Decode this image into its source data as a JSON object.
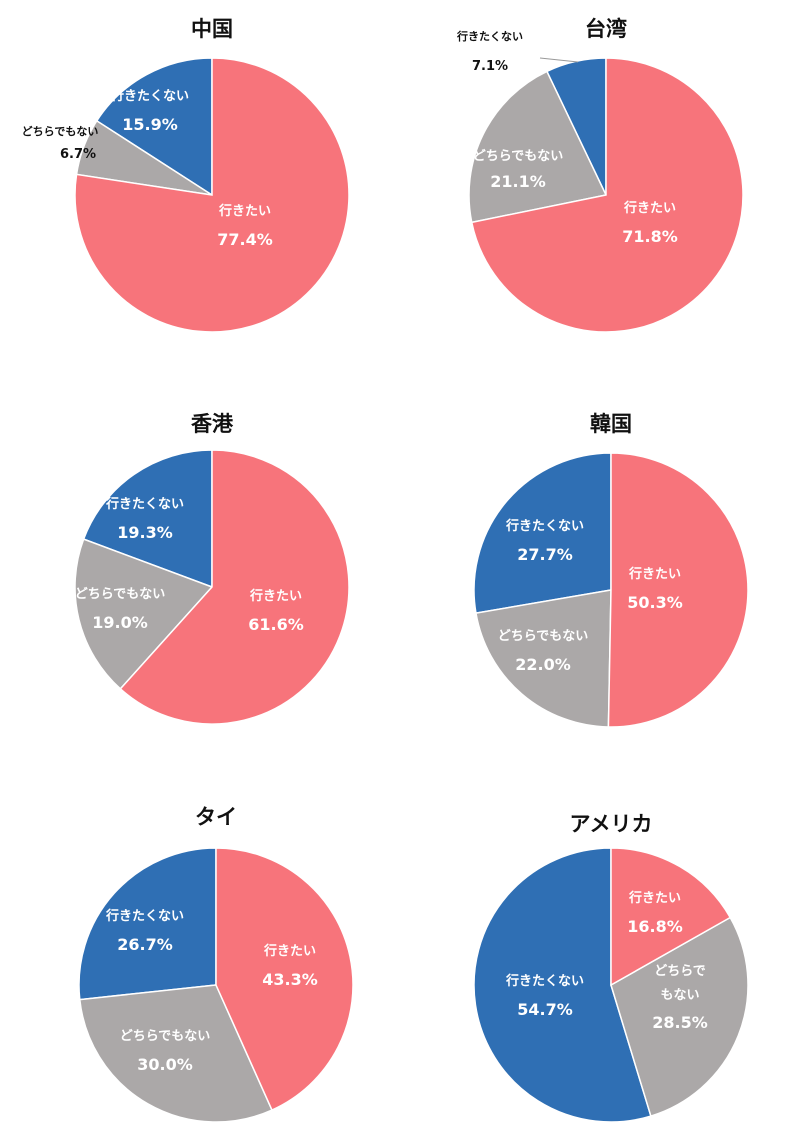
{
  "colors": {
    "want": "#f7747b",
    "neutral": "#aba8a8",
    "notwant": "#2f6fb4",
    "border": "#ffffff"
  },
  "chart_data": [
    {
      "type": "pie",
      "title": "中国",
      "slices": [
        {
          "key": "notwant",
          "label": "行きたくない",
          "value": 15.9,
          "display": "15.9%"
        },
        {
          "key": "neutral",
          "label": "どちらでもない",
          "value": 6.7,
          "display": "6.7%"
        },
        {
          "key": "want",
          "label": "行きたい",
          "value": 77.4,
          "display": "77.4%"
        }
      ]
    },
    {
      "type": "pie",
      "title": "台湾",
      "slices": [
        {
          "key": "notwant",
          "label": "行きたくない",
          "value": 7.1,
          "display": "7.1%"
        },
        {
          "key": "neutral",
          "label": "どちらでもない",
          "value": 21.1,
          "display": "21.1%"
        },
        {
          "key": "want",
          "label": "行きたい",
          "value": 71.8,
          "display": "71.8%"
        }
      ]
    },
    {
      "type": "pie",
      "title": "香港",
      "slices": [
        {
          "key": "notwant",
          "label": "行きたくない",
          "value": 19.3,
          "display": "19.3%"
        },
        {
          "key": "neutral",
          "label": "どちらでもない",
          "value": 19.0,
          "display": "19.0%"
        },
        {
          "key": "want",
          "label": "行きたい",
          "value": 61.6,
          "display": "61.6%"
        }
      ]
    },
    {
      "type": "pie",
      "title": "韓国",
      "slices": [
        {
          "key": "notwant",
          "label": "行きたくない",
          "value": 27.7,
          "display": "27.7%"
        },
        {
          "key": "neutral",
          "label": "どちらでもない",
          "value": 22.0,
          "display": "22.0%"
        },
        {
          "key": "want",
          "label": "行きたい",
          "value": 50.3,
          "display": "50.3%"
        }
      ]
    },
    {
      "type": "pie",
      "title": "タイ",
      "slices": [
        {
          "key": "notwant",
          "label": "行きたくない",
          "value": 26.7,
          "display": "26.7%"
        },
        {
          "key": "neutral",
          "label": "どちらでもない",
          "value": 30.0,
          "display": "30.0%"
        },
        {
          "key": "want",
          "label": "行きたい",
          "value": 43.3,
          "display": "43.3%"
        }
      ]
    },
    {
      "type": "pie",
      "title": "アメリカ",
      "slices": [
        {
          "key": "notwant",
          "label": "行きたくない",
          "value": 54.7,
          "display": "54.7%"
        },
        {
          "key": "neutral",
          "label": "どちらでもない",
          "value": 28.5,
          "display": "28.5%"
        },
        {
          "key": "want",
          "label": "行きたい",
          "value": 16.8,
          "display": "16.8%"
        }
      ]
    }
  ]
}
